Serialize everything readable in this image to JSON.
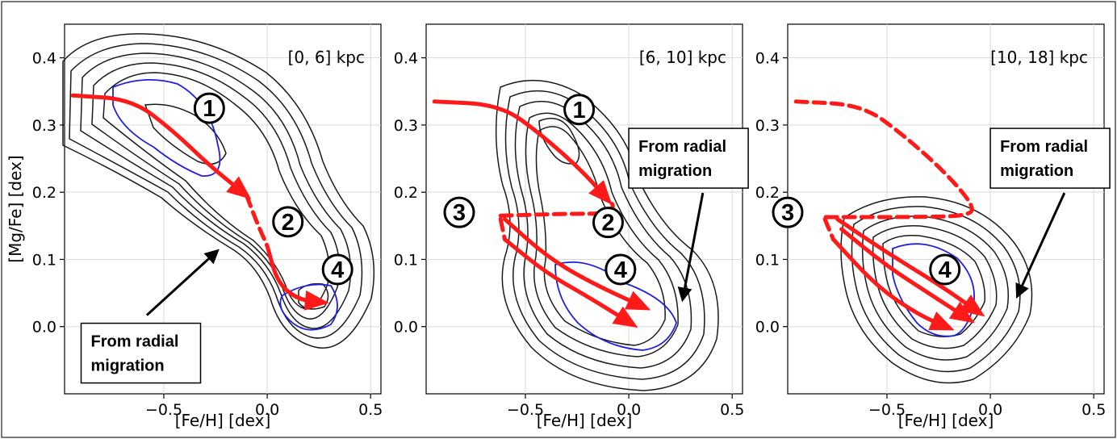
{
  "colors": {
    "contour": "#1a1a1a",
    "highlight_contour": "#1f1fe0",
    "path": "#ff1a1a",
    "grid": "#d9d9d9"
  },
  "chart_data": [
    {
      "type": "contour",
      "title": "[0,  6] kpc",
      "xlabel": "[Fe/H] [dex]",
      "ylabel": "[Mg/Fe] [dex]",
      "xlim": [
        -0.98,
        0.55
      ],
      "ylim": [
        -0.1,
        0.45
      ],
      "xticks": [
        "−0.5",
        "0.0",
        "0.5"
      ],
      "xtick_values": [
        -0.5,
        0.0,
        0.5
      ],
      "yticks": [
        "0.0",
        "0.1",
        "0.2",
        "0.3",
        "0.4"
      ],
      "ytick_values": [
        0.0,
        0.1,
        0.2,
        0.3,
        0.4
      ],
      "grid": true,
      "paths": [
        {
          "points": [
            [
              -0.94,
              0.344
            ],
            [
              -0.65,
              0.338
            ],
            [
              -0.45,
              0.29
            ],
            [
              -0.28,
              0.24
            ],
            [
              -0.1,
              0.195
            ]
          ],
          "style": "solid",
          "arrow": true
        },
        {
          "points": [
            [
              -0.1,
              0.195
            ],
            [
              -0.05,
              0.155
            ],
            [
              0.0,
              0.12
            ]
          ],
          "style": "dashed",
          "arrow": false
        },
        {
          "points": [
            [
              0.0,
              0.12
            ],
            [
              0.05,
              0.065
            ],
            [
              0.15,
              0.04
            ],
            [
              0.27,
              0.036
            ]
          ],
          "style": "solid",
          "arrow": true
        }
      ],
      "markers": [
        {
          "label": "1",
          "x": -0.28,
          "y": 0.325
        },
        {
          "label": "2",
          "x": 0.1,
          "y": 0.156
        },
        {
          "label": "4",
          "x": 0.34,
          "y": 0.085
        }
      ],
      "annotation": {
        "text": [
          "From radial",
          "migration"
        ],
        "box_x": -0.9,
        "box_y": 0.005,
        "arrow_to": [
          -0.24,
          0.113
        ]
      }
    },
    {
      "type": "contour",
      "title": "[6, 10] kpc",
      "xlabel": "[Fe/H] [dex]",
      "ylabel": "",
      "xlim": [
        -0.98,
        0.55
      ],
      "ylim": [
        -0.1,
        0.45
      ],
      "xticks": [
        "−0.5",
        "0.0",
        "0.5"
      ],
      "xtick_values": [
        -0.5,
        0.0,
        0.5
      ],
      "yticks": [
        "0.0",
        "0.1",
        "0.2",
        "0.3",
        "0.4"
      ],
      "ytick_values": [
        0.0,
        0.1,
        0.2,
        0.3,
        0.4
      ],
      "grid": true,
      "paths": [
        {
          "points": [
            [
              -0.94,
              0.335
            ],
            [
              -0.62,
              0.33
            ],
            [
              -0.42,
              0.285
            ],
            [
              -0.22,
              0.23
            ],
            [
              -0.1,
              0.188
            ]
          ],
          "style": "solid",
          "arrow": true
        },
        {
          "points": [
            [
              -0.62,
              0.165
            ],
            [
              -0.3,
              0.168
            ],
            [
              -0.1,
              0.168
            ],
            [
              -0.07,
              0.18
            ],
            [
              -0.1,
              0.188
            ]
          ],
          "style": "dashed",
          "arrow": false
        },
        {
          "points": [
            [
              -0.62,
              0.16
            ],
            [
              -0.6,
              0.13
            ]
          ],
          "style": "dashed",
          "arrow": false
        },
        {
          "points": [
            [
              -0.6,
              0.16
            ],
            [
              -0.4,
              0.105
            ],
            [
              -0.2,
              0.068
            ],
            [
              0.08,
              0.028
            ]
          ],
          "style": "solid",
          "arrow": true
        },
        {
          "points": [
            [
              -0.6,
              0.13
            ],
            [
              -0.4,
              0.08
            ],
            [
              -0.2,
              0.045
            ],
            [
              0.02,
              0.003
            ]
          ],
          "style": "solid",
          "arrow": true
        }
      ],
      "markers": [
        {
          "label": "1",
          "x": -0.24,
          "y": 0.323
        },
        {
          "label": "2",
          "x": -0.1,
          "y": 0.155
        },
        {
          "label": "3",
          "x": -0.82,
          "y": 0.17
        },
        {
          "label": "4",
          "x": -0.04,
          "y": 0.085
        }
      ],
      "annotation": {
        "text": [
          "From radial",
          "migration"
        ],
        "box_x": 0.0,
        "box_y": 0.295,
        "arrow_to": [
          0.26,
          0.04
        ]
      }
    },
    {
      "type": "contour",
      "title": "[10, 18] kpc",
      "xlabel": "[Fe/H] [dex]",
      "ylabel": "",
      "xlim": [
        -0.98,
        0.55
      ],
      "ylim": [
        -0.1,
        0.45
      ],
      "xticks": [
        "−0.5",
        "0.0",
        "0.5"
      ],
      "xtick_values": [
        -0.5,
        0.0,
        0.5
      ],
      "yticks": [
        "0.0",
        "0.1",
        "0.2",
        "0.3",
        "0.4"
      ],
      "ytick_values": [
        0.0,
        0.1,
        0.2,
        0.3,
        0.4
      ],
      "grid": true,
      "paths": [
        {
          "points": [
            [
              -0.94,
              0.335
            ],
            [
              -0.62,
              0.33
            ],
            [
              -0.42,
              0.285
            ],
            [
              -0.22,
              0.23
            ],
            [
              -0.08,
              0.18
            ],
            [
              -0.1,
              0.165
            ],
            [
              -0.35,
              0.163
            ],
            [
              -0.8,
              0.163
            ]
          ],
          "style": "dashed",
          "arrow": false
        },
        {
          "points": [
            [
              -0.8,
              0.16
            ],
            [
              -0.76,
              0.13
            ]
          ],
          "style": "dashed",
          "arrow": false
        },
        {
          "points": [
            [
              -0.74,
              0.16
            ],
            [
              -0.5,
              0.11
            ],
            [
              -0.25,
              0.063
            ],
            [
              -0.05,
              0.02
            ]
          ],
          "style": "solid",
          "arrow": true
        },
        {
          "points": [
            [
              -0.72,
              0.145
            ],
            [
              -0.5,
              0.09
            ],
            [
              -0.3,
              0.05
            ],
            [
              -0.1,
              0.01
            ]
          ],
          "style": "solid",
          "arrow": true
        },
        {
          "points": [
            [
              -0.76,
              0.13
            ],
            [
              -0.55,
              0.06
            ],
            [
              -0.35,
              0.018
            ],
            [
              -0.2,
              -0.002
            ]
          ],
          "style": "solid",
          "arrow": true
        }
      ],
      "markers": [
        {
          "label": "3",
          "x": -0.98,
          "y": 0.17
        },
        {
          "label": "4",
          "x": -0.22,
          "y": 0.085
        }
      ],
      "annotation": {
        "text": [
          "From radial",
          "migration"
        ],
        "box_x": 0.0,
        "box_y": 0.295,
        "arrow_to": [
          0.13,
          0.045
        ]
      }
    }
  ]
}
